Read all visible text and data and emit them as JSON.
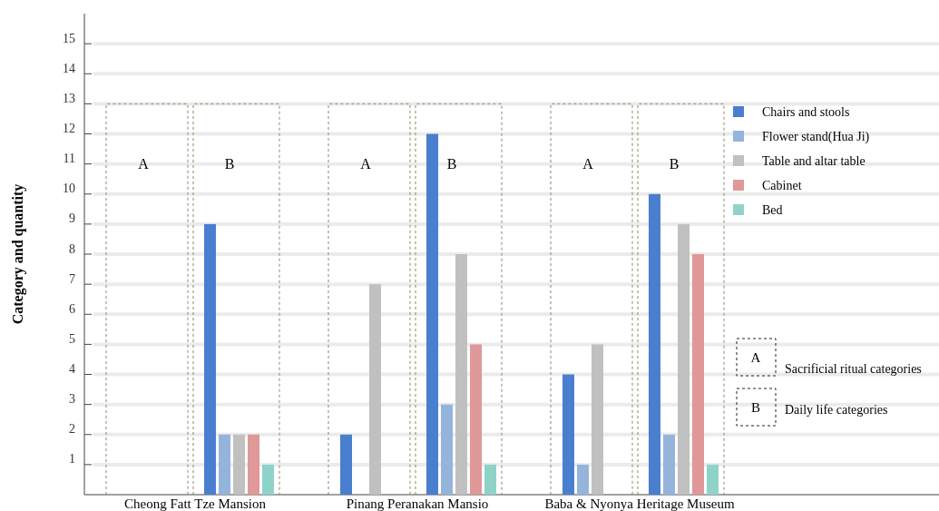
{
  "chart_data": {
    "type": "bar",
    "ylabel": "Category and quantity",
    "categories": [
      "A",
      "B",
      "A",
      "B",
      "A",
      "B"
    ],
    "series": [
      {
        "name": "Chairs and stools",
        "color": "#4a7fd0",
        "values": [
          null,
          9,
          2,
          12,
          4,
          10
        ]
      },
      {
        "name": "Flower stand(Hua Ji)",
        "color": "#94b4dc",
        "values": [
          null,
          2,
          null,
          3,
          1,
          2
        ]
      },
      {
        "name": "Table and altar table",
        "color": "#c0c0c0",
        "values": [
          null,
          2,
          7,
          8,
          5,
          9
        ]
      },
      {
        "name": "Cabinet",
        "color": "#e09898",
        "values": [
          null,
          2,
          null,
          5,
          null,
          8
        ]
      },
      {
        "name": "Bed",
        "color": "#8fd3c8",
        "values": [
          null,
          1,
          null,
          1,
          null,
          1
        ]
      }
    ],
    "ylim": [
      0,
      16
    ],
    "yticks": [
      1,
      2,
      3,
      4,
      5,
      6,
      7,
      8,
      9,
      10,
      11,
      12,
      13,
      14,
      15
    ],
    "grid": "y",
    "legend": "top right",
    "annotations": [
      "Cheong Fatt Tze Mansion",
      "Pinang Peranakan Mansio",
      "Baba & Nyonya Heritage Museum",
      "Sacrificial ritual categories",
      "Daily life categories"
    ]
  }
}
